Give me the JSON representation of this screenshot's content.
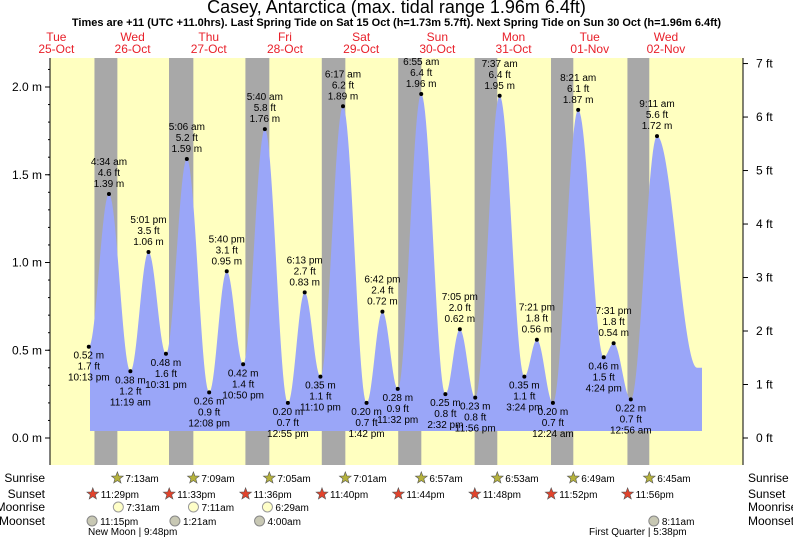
{
  "title": "Casey, Antarctica (max. tidal range 1.96m 6.4ft)",
  "subtitle": "Times are +11 (UTC +11.0hrs). Last Spring Tide on Sat 15 Oct (h=1.73m 5.7ft). Next Spring Tide on Sun 30 Oct (h=1.96m 6.4ft)",
  "colors": {
    "day": "#ffffc0",
    "night": "#a8a8a8",
    "tide": "#9aa6f8",
    "daylabel": "#e8202a"
  },
  "chart_data": {
    "type": "area",
    "ylabel_left": "m",
    "ylabel_right": "ft",
    "ylim_m": [
      -0.1,
      2.2
    ],
    "left_ticks": [
      "0.0 m",
      "0.5 m",
      "1.0 m",
      "1.5 m",
      "2.0 m"
    ],
    "right_ticks": [
      "0 ft",
      "1 ft",
      "2 ft",
      "3 ft",
      "4 ft",
      "5 ft",
      "6 ft",
      "7 ft"
    ],
    "days": [
      {
        "dow": "Tue",
        "date": "25-Oct"
      },
      {
        "dow": "Wed",
        "date": "26-Oct"
      },
      {
        "dow": "Thu",
        "date": "27-Oct"
      },
      {
        "dow": "Fri",
        "date": "28-Oct"
      },
      {
        "dow": "Sat",
        "date": "29-Oct"
      },
      {
        "dow": "Sun",
        "date": "30-Oct"
      },
      {
        "dow": "Mon",
        "date": "31-Oct"
      },
      {
        "dow": "Tue",
        "date": "01-Nov"
      },
      {
        "dow": "Wed",
        "date": "02-Nov"
      }
    ],
    "tides": [
      {
        "time": "10:13 pm",
        "m": 0.52,
        "ft": "1.7 ft",
        "h": "0.52 m",
        "type": "low",
        "day": 0,
        "hours": 22.22
      },
      {
        "time": "4:34 am",
        "m": 1.39,
        "ft": "4.6 ft",
        "h": "1.39 m",
        "type": "high",
        "day": 1,
        "hours": 4.57
      },
      {
        "time": "11:19 am",
        "m": 0.38,
        "ft": "1.2 ft",
        "h": "0.38 m",
        "type": "low",
        "day": 1,
        "hours": 11.32
      },
      {
        "time": "5:01 pm",
        "m": 1.06,
        "ft": "3.5 ft",
        "h": "1.06 m",
        "type": "high",
        "day": 1,
        "hours": 17.02
      },
      {
        "time": "10:31 pm",
        "m": 0.48,
        "ft": "1.6 ft",
        "h": "0.48 m",
        "type": "low",
        "day": 1,
        "hours": 22.52
      },
      {
        "time": "5:06 am",
        "m": 1.59,
        "ft": "5.2 ft",
        "h": "1.59 m",
        "type": "high",
        "day": 2,
        "hours": 5.1
      },
      {
        "time": "12:08 pm",
        "m": 0.26,
        "ft": "0.9 ft",
        "h": "0.26 m",
        "type": "low",
        "day": 2,
        "hours": 12.13
      },
      {
        "time": "5:40 pm",
        "m": 0.95,
        "ft": "3.1 ft",
        "h": "0.95 m",
        "type": "high",
        "day": 2,
        "hours": 17.67
      },
      {
        "time": "10:50 pm",
        "m": 0.42,
        "ft": "1.4 ft",
        "h": "0.42 m",
        "type": "low",
        "day": 2,
        "hours": 22.83
      },
      {
        "time": "5:40 am",
        "m": 1.76,
        "ft": "5.8 ft",
        "h": "1.76 m",
        "type": "high",
        "day": 3,
        "hours": 5.67
      },
      {
        "time": "12:55 pm",
        "m": 0.2,
        "ft": "0.7 ft",
        "h": "0.20 m",
        "type": "low",
        "day": 3,
        "hours": 12.92
      },
      {
        "time": "6:13 pm",
        "m": 0.83,
        "ft": "2.7 ft",
        "h": "0.83 m",
        "type": "high",
        "day": 3,
        "hours": 18.22
      },
      {
        "time": "11:10 pm",
        "m": 0.35,
        "ft": "1.1 ft",
        "h": "0.35 m",
        "type": "low",
        "day": 3,
        "hours": 23.17
      },
      {
        "time": "6:17 am",
        "m": 1.89,
        "ft": "6.2 ft",
        "h": "1.89 m",
        "type": "high",
        "day": 4,
        "hours": 6.28
      },
      {
        "time": "1:42 pm",
        "m": 0.2,
        "ft": "0.7 ft",
        "h": "0.20 m",
        "type": "low",
        "day": 4,
        "hours": 13.7
      },
      {
        "time": "6:42 pm",
        "m": 0.72,
        "ft": "2.4 ft",
        "h": "0.72 m",
        "type": "high",
        "day": 4,
        "hours": 18.7
      },
      {
        "time": "11:32 pm",
        "m": 0.28,
        "ft": "0.9 ft",
        "h": "0.28 m",
        "type": "low",
        "day": 4,
        "hours": 23.53
      },
      {
        "time": "6:55 am",
        "m": 1.96,
        "ft": "6.4 ft",
        "h": "1.96 m",
        "type": "high",
        "day": 5,
        "hours": 6.92
      },
      {
        "time": "2:32 pm",
        "m": 0.25,
        "ft": "0.8 ft",
        "h": "0.25 m",
        "type": "low",
        "day": 5,
        "hours": 14.53
      },
      {
        "time": "7:05 pm",
        "m": 0.62,
        "ft": "2.0 ft",
        "h": "0.62 m",
        "type": "high",
        "day": 5,
        "hours": 19.08
      },
      {
        "time": "11:56 pm",
        "m": 0.23,
        "ft": "0.8 ft",
        "h": "0.23 m",
        "type": "low",
        "day": 5,
        "hours": 23.93
      },
      {
        "time": "7:37 am",
        "m": 1.95,
        "ft": "6.4 ft",
        "h": "1.95 m",
        "type": "high",
        "day": 6,
        "hours": 7.62
      },
      {
        "time": "3:24 pm",
        "m": 0.35,
        "ft": "1.1 ft",
        "h": "0.35 m",
        "type": "low",
        "day": 6,
        "hours": 15.4
      },
      {
        "time": "7:21 pm",
        "m": 0.56,
        "ft": "1.8 ft",
        "h": "0.56 m",
        "type": "high",
        "day": 6,
        "hours": 19.35
      },
      {
        "time": "12:24 am",
        "m": 0.2,
        "ft": "0.7 ft",
        "h": "0.20 m",
        "type": "low",
        "day": 7,
        "hours": 0.4
      },
      {
        "time": "8:21 am",
        "m": 1.87,
        "ft": "6.1 ft",
        "h": "1.87 m",
        "type": "high",
        "day": 7,
        "hours": 8.35
      },
      {
        "time": "4:24 pm",
        "m": 0.46,
        "ft": "1.5 ft",
        "h": "0.46 m",
        "type": "low",
        "day": 7,
        "hours": 16.4
      },
      {
        "time": "7:31 pm",
        "m": 0.54,
        "ft": "1.8 ft",
        "h": "0.54 m",
        "type": "high",
        "day": 7,
        "hours": 19.52
      },
      {
        "time": "12:56 am",
        "m": 0.22,
        "ft": "0.7 ft",
        "h": "0.22 m",
        "type": "low",
        "day": 8,
        "hours": 0.93
      },
      {
        "time": "9:11 am",
        "m": 1.72,
        "ft": "5.6 ft",
        "h": "1.72 m",
        "type": "high",
        "day": 8,
        "hours": 9.18
      }
    ],
    "nights": [
      {
        "start_day": 1,
        "start_hours": 0.0,
        "end_day": 1,
        "end_hours": 7.22
      },
      {
        "start_day": 1,
        "start_hours": 23.48,
        "end_day": 2,
        "end_hours": 7.15
      },
      {
        "start_day": 2,
        "start_hours": 23.55,
        "end_day": 3,
        "end_hours": 7.08
      },
      {
        "start_day": 3,
        "start_hours": 23.6,
        "end_day": 4,
        "end_hours": 7.02
      },
      {
        "start_day": 4,
        "start_hours": 23.67,
        "end_day": 5,
        "end_hours": 6.95
      },
      {
        "start_day": 5,
        "start_hours": 23.73,
        "end_day": 6,
        "end_hours": 6.88
      },
      {
        "start_day": 6,
        "start_hours": 23.8,
        "end_day": 7,
        "end_hours": 6.82
      },
      {
        "start_day": 7,
        "start_hours": 23.87,
        "end_day": 8,
        "end_hours": 6.75
      }
    ],
    "rows": {
      "sunrise_label": "Sunrise",
      "sunset_label": "Sunset",
      "moonrise_label": "Moonrise",
      "moonset_label": "Moonset",
      "sunrise": [
        {
          "day": 1,
          "hours": 7.22,
          "text": "7:13am"
        },
        {
          "day": 2,
          "hours": 7.15,
          "text": "7:09am"
        },
        {
          "day": 3,
          "hours": 7.08,
          "text": "7:05am"
        },
        {
          "day": 4,
          "hours": 7.02,
          "text": "7:01am"
        },
        {
          "day": 5,
          "hours": 6.95,
          "text": "6:57am"
        },
        {
          "day": 6,
          "hours": 6.88,
          "text": "6:53am"
        },
        {
          "day": 7,
          "hours": 6.82,
          "text": "6:49am"
        },
        {
          "day": 8,
          "hours": 6.75,
          "text": "6:45am"
        }
      ],
      "sunset": [
        {
          "day": 0,
          "hours": 23.48,
          "text": "11:29pm"
        },
        {
          "day": 1,
          "hours": 23.55,
          "text": "11:33pm"
        },
        {
          "day": 2,
          "hours": 23.6,
          "text": "11:36pm"
        },
        {
          "day": 3,
          "hours": 23.67,
          "text": "11:40pm"
        },
        {
          "day": 4,
          "hours": 23.73,
          "text": "11:44pm"
        },
        {
          "day": 5,
          "hours": 23.8,
          "text": "11:48pm"
        },
        {
          "day": 6,
          "hours": 23.87,
          "text": "11:52pm"
        },
        {
          "day": 7,
          "hours": 23.93,
          "text": "11:56pm"
        }
      ],
      "moonrise": [
        {
          "day": 1,
          "hours": 7.52,
          "text": "7:31am"
        },
        {
          "day": 2,
          "hours": 7.18,
          "text": "7:11am"
        },
        {
          "day": 3,
          "hours": 6.48,
          "text": "6:29am"
        }
      ],
      "moonset": [
        {
          "day": 0,
          "hours": 23.25,
          "text": "11:15pm"
        },
        {
          "day": 2,
          "hours": 1.35,
          "text": "1:21am"
        },
        {
          "day": 3,
          "hours": 4.0,
          "text": "4:00am"
        },
        {
          "day": 8,
          "hours": 8.18,
          "text": "8:11am"
        }
      ],
      "new_moon": "New Moon | 9:48pm",
      "first_quarter": "First Quarter | 5:38pm"
    }
  }
}
